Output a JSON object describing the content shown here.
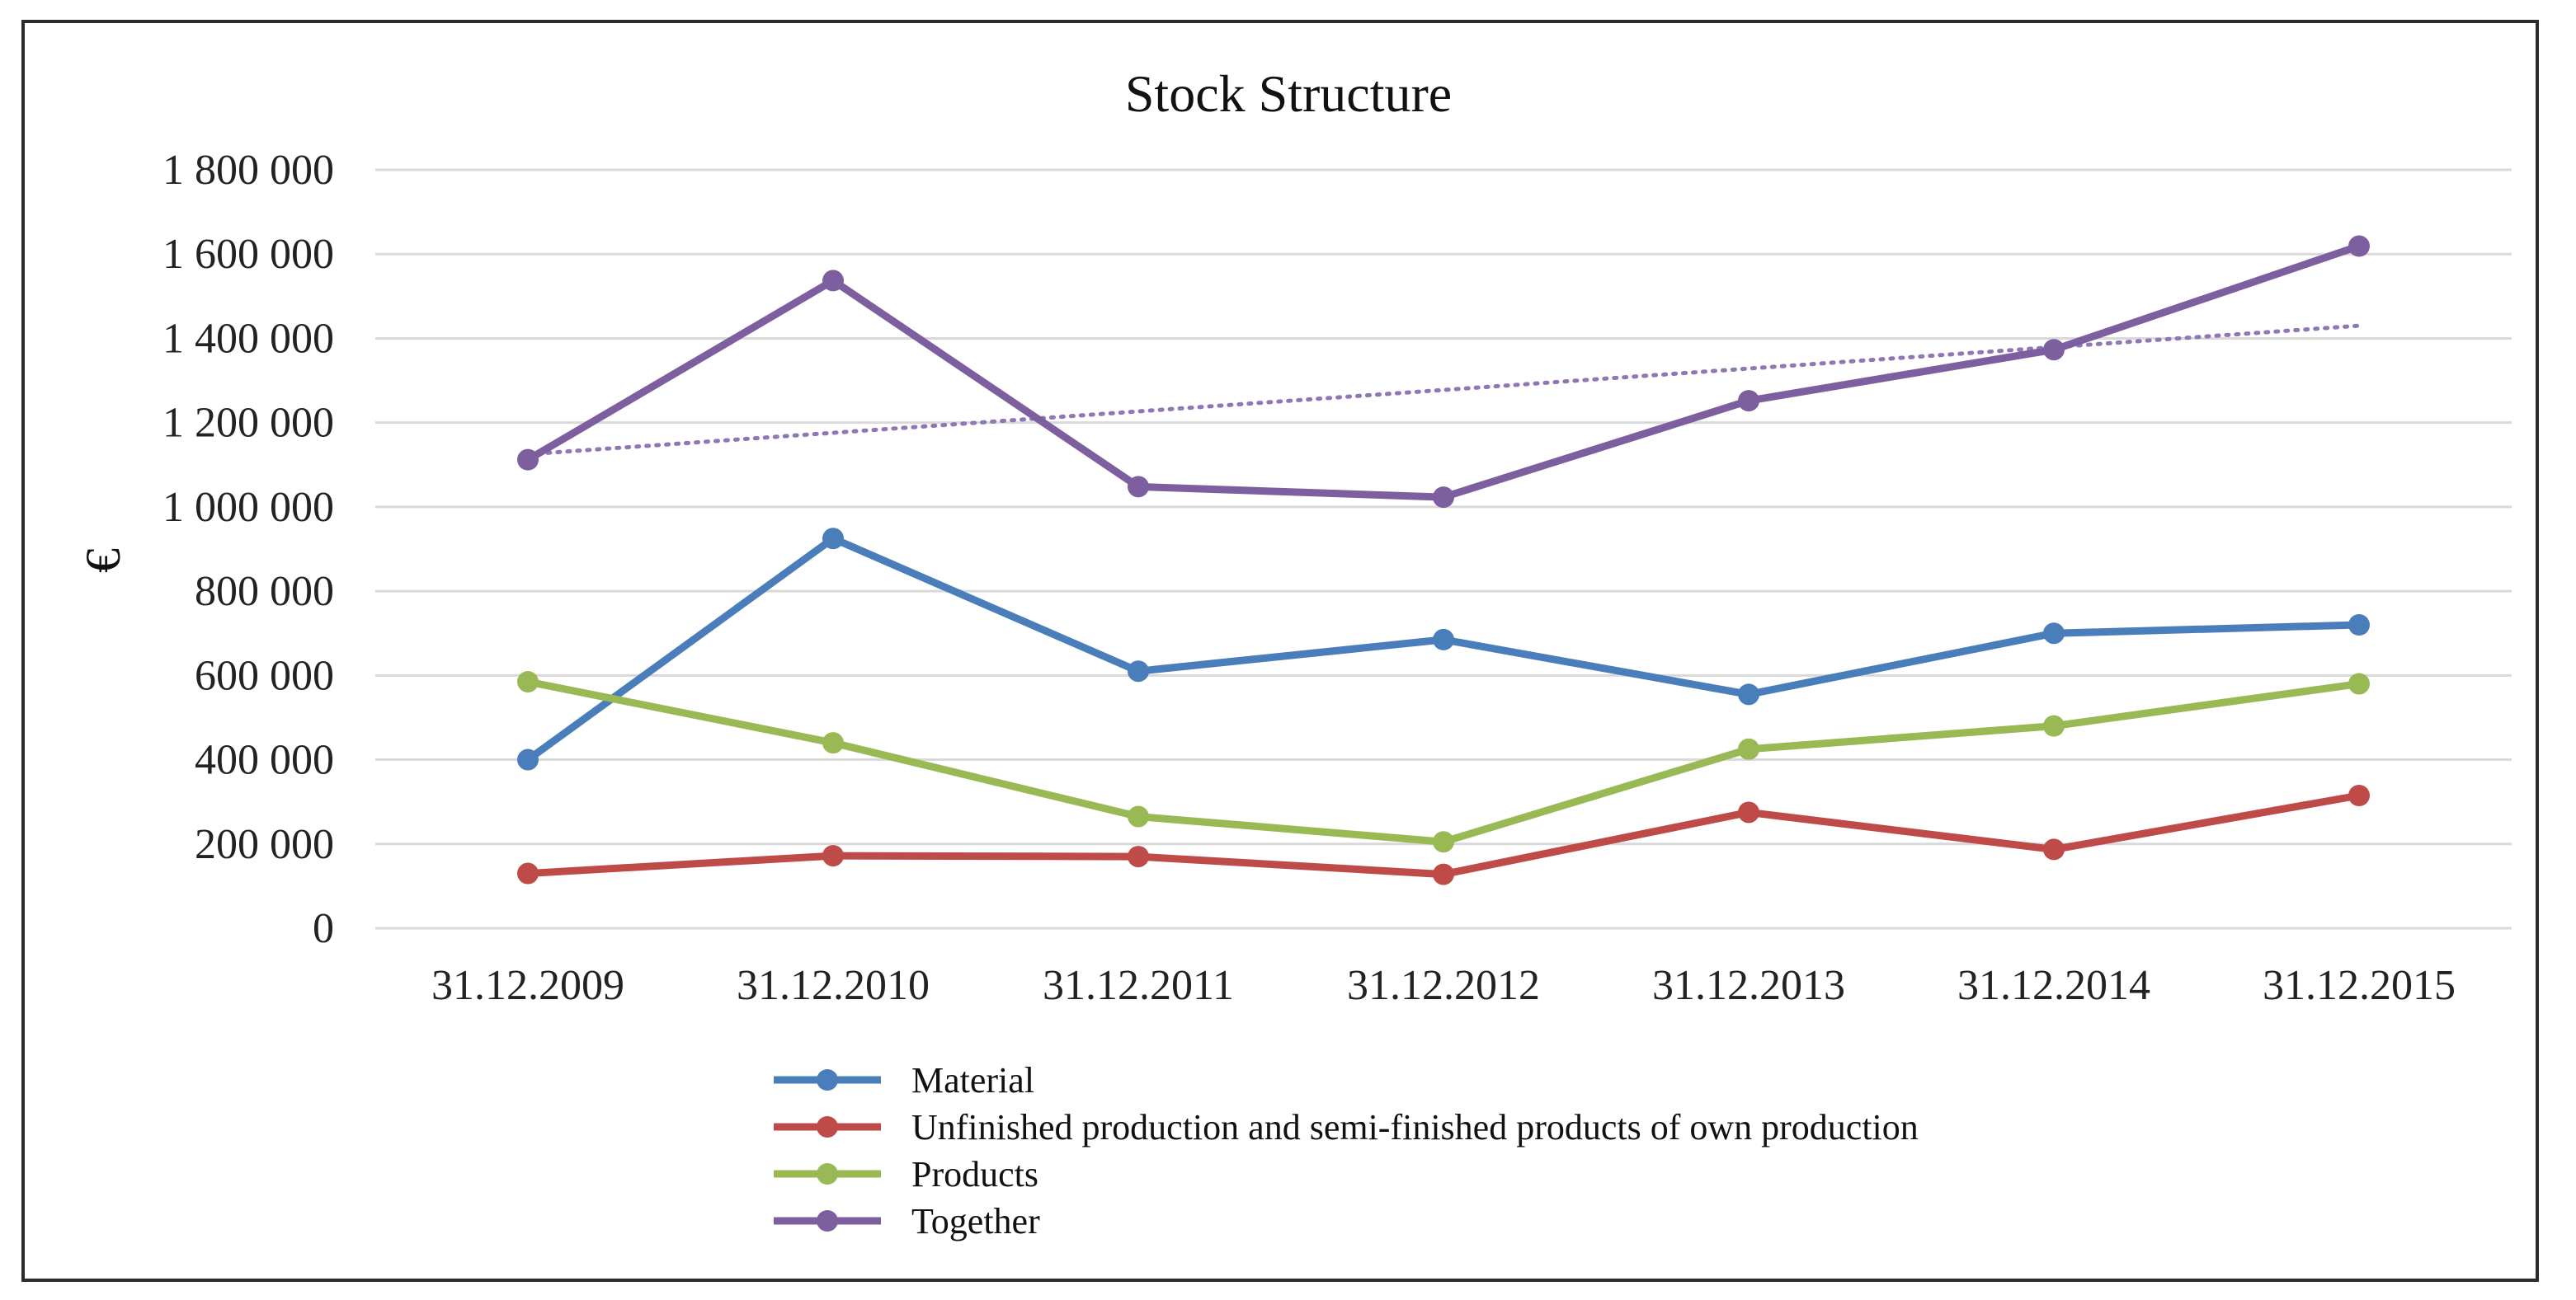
{
  "chart_data": {
    "type": "line",
    "title": "Stock Structure",
    "xlabel": "",
    "ylabel": "€",
    "ylim": [
      0,
      1800000
    ],
    "yticks": [
      0,
      200000,
      400000,
      600000,
      800000,
      1000000,
      1200000,
      1400000,
      1600000,
      1800000
    ],
    "ytick_labels": [
      "0",
      "200 000",
      "400 000",
      "600 000",
      "800 000",
      "1 000 000",
      "1 200 000",
      "1 400 000",
      "1 600 000",
      "1 800 000"
    ],
    "categories": [
      "31.12.2009",
      "31.12.2010",
      "31.12.2011",
      "31.12.2012",
      "31.12.2013",
      "31.12.2014",
      "31.12.2015"
    ],
    "grid": true,
    "legend_position": "bottom",
    "series": [
      {
        "name": "Material",
        "color": "#4a7ebb",
        "values": [
          400000,
          925000,
          610000,
          685000,
          555000,
          700000,
          720000
        ]
      },
      {
        "name": "Unfinished production and semi-finished products of own production",
        "color": "#be4b48",
        "values": [
          130000,
          172000,
          170000,
          128000,
          275000,
          187000,
          315000
        ]
      },
      {
        "name": "Products",
        "color": "#98b954",
        "values": [
          585000,
          440000,
          265000,
          205000,
          425000,
          480000,
          580000
        ]
      },
      {
        "name": "Together",
        "color": "#7d5fa0",
        "values": [
          1112000,
          1537000,
          1048000,
          1023000,
          1252000,
          1373000,
          1619000
        ]
      }
    ],
    "trendline": {
      "series": "Together",
      "type": "linear",
      "style": "dotted",
      "color": "#8f77b5",
      "start": 1125000,
      "end": 1430000
    }
  }
}
